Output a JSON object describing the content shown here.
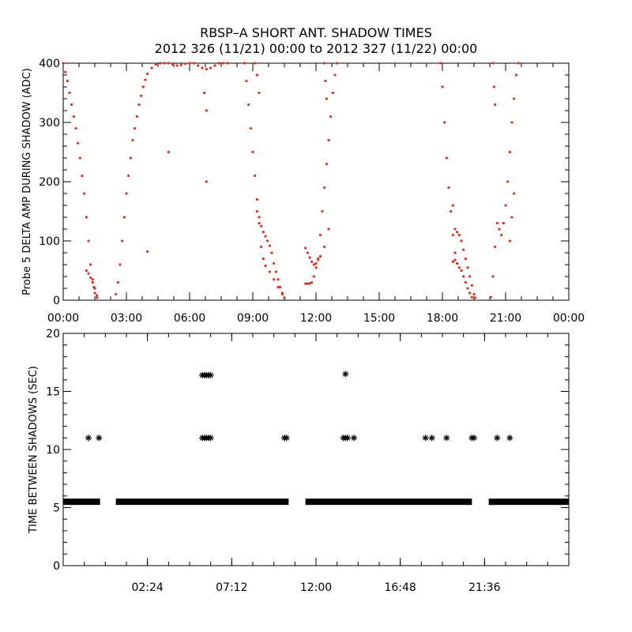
{
  "figure": {
    "title_line1": "RBSP–A SHORT ANT. SHADOW TIMES",
    "title_line2": "2012 326 (11/21) 00:00 to 2012 327 (11/22) 00:00"
  },
  "colors": {
    "top_series": "#e0301e",
    "bottom_series": "#000000",
    "axes": "#000000"
  },
  "chart_data": [
    {
      "type": "scatter",
      "title": "",
      "xlabel": "",
      "ylabel": "Probe 5 DELTA AMP DURING SHADOW (ADC)",
      "xlim": [
        0,
        24
      ],
      "ylim": [
        0,
        400
      ],
      "x_unit": "hours of day",
      "xtick_labels": [
        "00:00",
        "03:00",
        "06:00",
        "09:00",
        "12:00",
        "15:00",
        "18:00",
        "21:00",
        "00:00"
      ],
      "ytick_labels": [
        "0",
        "100",
        "200",
        "300",
        "400"
      ],
      "grid": false,
      "series": [
        {
          "points": [
            [
              0.0,
              400
            ],
            [
              0.1,
              385
            ],
            [
              0.2,
              370
            ],
            [
              0.3,
              350
            ],
            [
              0.4,
              330
            ],
            [
              0.5,
              310
            ],
            [
              0.6,
              290
            ],
            [
              0.7,
              265
            ],
            [
              0.8,
              240
            ],
            [
              0.9,
              210
            ],
            [
              1.0,
              180
            ],
            [
              1.1,
              140
            ],
            [
              1.2,
              100
            ],
            [
              1.3,
              60
            ],
            [
              1.4,
              35
            ],
            [
              1.45,
              22
            ],
            [
              1.5,
              12
            ],
            [
              1.6,
              4
            ],
            [
              1.1,
              50
            ],
            [
              1.2,
              45
            ],
            [
              1.3,
              38
            ],
            [
              1.4,
              30
            ],
            [
              1.5,
              20
            ],
            [
              1.6,
              8
            ],
            [
              2.5,
              10
            ],
            [
              2.6,
              30
            ],
            [
              2.7,
              60
            ],
            [
              2.8,
              100
            ],
            [
              2.9,
              140
            ],
            [
              3.0,
              180
            ],
            [
              3.1,
              210
            ],
            [
              3.2,
              240
            ],
            [
              3.3,
              270
            ],
            [
              3.4,
              290
            ],
            [
              3.5,
              310
            ],
            [
              3.6,
              330
            ],
            [
              3.7,
              345
            ],
            [
              3.8,
              360
            ],
            [
              3.9,
              372
            ],
            [
              4.0,
              382
            ],
            [
              4.2,
              392
            ],
            [
              4.4,
              398
            ],
            [
              4.6,
              400
            ],
            [
              4.8,
              400
            ],
            [
              5.0,
              400
            ],
            [
              5.2,
              398
            ],
            [
              5.4,
              396
            ],
            [
              5.6,
              397
            ],
            [
              5.8,
              399
            ],
            [
              6.0,
              400
            ],
            [
              6.2,
              400
            ],
            [
              6.4,
              396
            ],
            [
              6.6,
              392
            ],
            [
              6.8,
              390
            ],
            [
              7.0,
              392
            ],
            [
              7.2,
              396
            ],
            [
              7.4,
              400
            ],
            [
              7.6,
              400
            ],
            [
              7.8,
              400
            ],
            [
              4.0,
              82
            ],
            [
              5.0,
              250
            ],
            [
              6.8,
              200
            ],
            [
              6.8,
              320
            ],
            [
              6.7,
              350
            ],
            [
              8.6,
              400
            ],
            [
              8.7,
              370
            ],
            [
              8.8,
              330
            ],
            [
              8.9,
              290
            ],
            [
              9.0,
              250
            ],
            [
              9.1,
              210
            ],
            [
              9.2,
              170
            ],
            [
              9.3,
              130
            ],
            [
              9.4,
              90
            ],
            [
              9.5,
              70
            ],
            [
              9.6,
              58
            ],
            [
              9.8,
              48
            ],
            [
              10.0,
              35
            ],
            [
              10.2,
              22
            ],
            [
              10.4,
              10
            ],
            [
              10.5,
              4
            ],
            [
              9.2,
              150
            ],
            [
              9.3,
              140
            ],
            [
              9.4,
              125
            ],
            [
              9.5,
              115
            ],
            [
              9.6,
              108
            ],
            [
              9.7,
              100
            ],
            [
              9.8,
              92
            ],
            [
              9.9,
              80
            ],
            [
              10.0,
              62
            ],
            [
              10.1,
              48
            ],
            [
              10.2,
              35
            ],
            [
              10.3,
              22
            ],
            [
              10.4,
              12
            ],
            [
              9.1,
              400
            ],
            [
              9.2,
              380
            ],
            [
              9.3,
              350
            ],
            [
              11.5,
              28
            ],
            [
              11.6,
              28
            ],
            [
              11.7,
              28
            ],
            [
              11.8,
              30
            ],
            [
              11.9,
              40
            ],
            [
              12.0,
              55
            ],
            [
              12.1,
              70
            ],
            [
              12.2,
              110
            ],
            [
              12.3,
              150
            ],
            [
              12.4,
              190
            ],
            [
              12.5,
              230
            ],
            [
              12.6,
              270
            ],
            [
              12.7,
              310
            ],
            [
              12.8,
              350
            ],
            [
              12.9,
              380
            ],
            [
              13.0,
              400
            ],
            [
              11.5,
              88
            ],
            [
              11.6,
              80
            ],
            [
              11.7,
              72
            ],
            [
              11.8,
              65
            ],
            [
              11.9,
              60
            ],
            [
              12.0,
              62
            ],
            [
              12.1,
              68
            ],
            [
              12.2,
              74
            ],
            [
              12.4,
              90
            ],
            [
              12.6,
              120
            ],
            [
              12.4,
              400
            ],
            [
              12.45,
              370
            ],
            [
              12.5,
              340
            ],
            [
              17.9,
              400
            ],
            [
              18.0,
              360
            ],
            [
              18.1,
              300
            ],
            [
              18.2,
              240
            ],
            [
              18.3,
              190
            ],
            [
              18.4,
              150
            ],
            [
              18.5,
              110
            ],
            [
              18.6,
              80
            ],
            [
              18.7,
              62
            ],
            [
              18.8,
              55
            ],
            [
              18.9,
              50
            ],
            [
              19.0,
              40
            ],
            [
              19.1,
              30
            ],
            [
              19.2,
              20
            ],
            [
              19.3,
              12
            ],
            [
              19.4,
              5
            ],
            [
              18.5,
              160
            ],
            [
              18.6,
              120
            ],
            [
              18.7,
              115
            ],
            [
              18.8,
              110
            ],
            [
              18.9,
              100
            ],
            [
              19.0,
              85
            ],
            [
              19.1,
              70
            ],
            [
              19.2,
              55
            ],
            [
              19.3,
              40
            ],
            [
              19.4,
              25
            ],
            [
              19.5,
              10
            ],
            [
              19.55,
              4
            ],
            [
              18.5,
              65
            ],
            [
              18.6,
              68
            ],
            [
              18.7,
              62
            ],
            [
              20.3,
              5
            ],
            [
              20.4,
              40
            ],
            [
              20.5,
              90
            ],
            [
              20.6,
              130
            ],
            [
              20.7,
              120
            ],
            [
              20.8,
              110
            ],
            [
              20.4,
              400
            ],
            [
              20.45,
              360
            ],
            [
              20.5,
              330
            ],
            [
              20.9,
              130
            ],
            [
              21.0,
              160
            ],
            [
              21.1,
              200
            ],
            [
              21.2,
              250
            ],
            [
              21.3,
              300
            ],
            [
              21.4,
              340
            ],
            [
              21.5,
              380
            ],
            [
              21.6,
              400
            ],
            [
              21.2,
              100
            ],
            [
              21.3,
              140
            ],
            [
              21.4,
              180
            ]
          ]
        }
      ]
    },
    {
      "type": "scatter",
      "title": "",
      "xlabel": "",
      "ylabel": "TIME BETWEEN SHADOWS (SEC)",
      "xlim": [
        0,
        24
      ],
      "ylim": [
        0,
        20
      ],
      "x_unit": "hours of day",
      "xtick_labels": [
        "02:24",
        "07:12",
        "12:00",
        "16:48",
        "21:36"
      ],
      "ytick_labels": [
        "0",
        "5",
        "10",
        "15",
        "20"
      ],
      "grid": false,
      "series": [
        {
          "base_level": 5.5,
          "base_segments": [
            [
              0.0,
              1.75
            ],
            [
              2.5,
              10.7
            ],
            [
              11.5,
              19.4
            ],
            [
              20.2,
              24.0
            ]
          ],
          "points": [
            [
              1.2,
              11
            ],
            [
              1.7,
              11
            ],
            [
              6.6,
              16.4
            ],
            [
              6.7,
              16.4
            ],
            [
              6.8,
              16.4
            ],
            [
              6.9,
              16.4
            ],
            [
              7.0,
              16.4
            ],
            [
              6.6,
              11
            ],
            [
              6.7,
              11
            ],
            [
              6.8,
              11
            ],
            [
              6.9,
              11
            ],
            [
              7.0,
              11
            ],
            [
              10.5,
              11
            ],
            [
              10.6,
              11
            ],
            [
              13.4,
              16.5
            ],
            [
              13.3,
              11
            ],
            [
              13.4,
              11
            ],
            [
              13.5,
              11
            ],
            [
              13.8,
              11
            ],
            [
              17.2,
              11
            ],
            [
              17.5,
              11
            ],
            [
              18.2,
              11
            ],
            [
              19.4,
              11
            ],
            [
              19.5,
              11
            ],
            [
              20.6,
              11
            ],
            [
              21.2,
              11
            ]
          ]
        }
      ]
    }
  ]
}
